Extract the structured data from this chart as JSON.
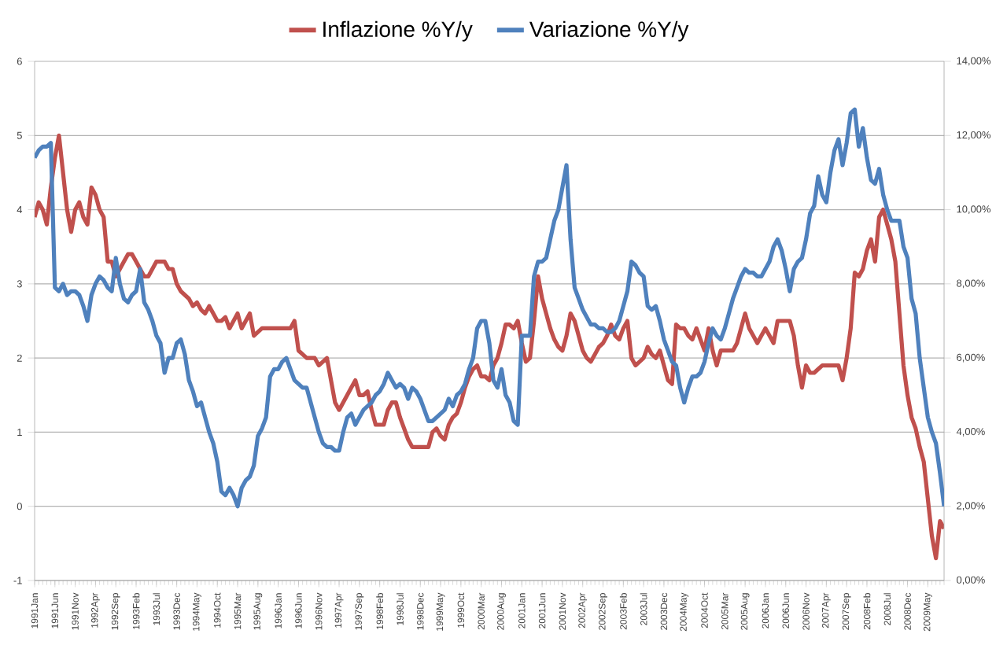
{
  "chart_data": {
    "type": "line",
    "categories": [
      "1991Jan",
      null,
      null,
      null,
      null,
      "1991Jun",
      null,
      null,
      null,
      null,
      "1991Nov",
      null,
      null,
      null,
      null,
      "1992Apr",
      null,
      null,
      null,
      null,
      "1992Sep",
      null,
      null,
      null,
      null,
      "1993Feb",
      null,
      null,
      null,
      null,
      "1993Jul",
      null,
      null,
      null,
      null,
      "1993Dec",
      null,
      null,
      null,
      null,
      "1994May",
      null,
      null,
      null,
      null,
      "1994Oct",
      null,
      null,
      null,
      null,
      "1995Mar",
      null,
      null,
      null,
      null,
      "1995Aug",
      null,
      null,
      null,
      null,
      "1996Jan",
      null,
      null,
      null,
      null,
      "1996Jun",
      null,
      null,
      null,
      null,
      "1996Nov",
      null,
      null,
      null,
      null,
      "1997Apr",
      null,
      null,
      null,
      null,
      "1997Sep",
      null,
      null,
      null,
      null,
      "1998Feb",
      null,
      null,
      null,
      null,
      "1998Jul",
      null,
      null,
      null,
      null,
      "1998Dec",
      null,
      null,
      null,
      null,
      "1999May",
      null,
      null,
      null,
      null,
      "1999Oct",
      null,
      null,
      null,
      null,
      "2000Mar",
      null,
      null,
      null,
      null,
      "2000Aug",
      null,
      null,
      null,
      null,
      "2001Jan",
      null,
      null,
      null,
      null,
      "2001Jun",
      null,
      null,
      null,
      null,
      "2001Nov",
      null,
      null,
      null,
      null,
      "2002Apr",
      null,
      null,
      null,
      null,
      "2002Sep",
      null,
      null,
      null,
      null,
      "2003Feb",
      null,
      null,
      null,
      null,
      "2003Jul",
      null,
      null,
      null,
      null,
      "2003Dec",
      null,
      null,
      null,
      null,
      "2004May",
      null,
      null,
      null,
      null,
      "2004Oct",
      null,
      null,
      null,
      null,
      "2005Mar",
      null,
      null,
      null,
      null,
      "2005Aug",
      null,
      null,
      null,
      null,
      "2006Jan",
      null,
      null,
      null,
      null,
      "2006Jun",
      null,
      null,
      null,
      null,
      "2006Nov",
      null,
      null,
      null,
      null,
      "2007Apr",
      null,
      null,
      null,
      null,
      "2007Sep",
      null,
      null,
      null,
      null,
      "2008Feb",
      null,
      null,
      null,
      null,
      "2008Jul",
      null,
      null,
      null,
      null,
      "2008Dec",
      null,
      null,
      null,
      null,
      "2009May",
      null,
      null,
      null,
      null
    ],
    "series": [
      {
        "name": "Inflazione %Y/y",
        "color": "#c0504d",
        "values": [
          3.9,
          4.1,
          4.0,
          3.8,
          4.3,
          4.7,
          5.0,
          4.5,
          4.0,
          3.7,
          4.0,
          4.1,
          3.9,
          3.8,
          4.3,
          4.2,
          4.0,
          3.9,
          3.3,
          3.3,
          3.1,
          3.2,
          3.3,
          3.4,
          3.4,
          3.3,
          3.2,
          3.1,
          3.1,
          3.2,
          3.3,
          3.3,
          3.3,
          3.2,
          3.2,
          3.0,
          2.9,
          2.85,
          2.8,
          2.7,
          2.75,
          2.65,
          2.6,
          2.7,
          2.6,
          2.5,
          2.5,
          2.55,
          2.4,
          2.5,
          2.6,
          2.4,
          2.5,
          2.6,
          2.3,
          2.35,
          2.4,
          2.4,
          2.4,
          2.4,
          2.4,
          2.4,
          2.4,
          2.4,
          2.5,
          2.1,
          2.05,
          2.0,
          2.0,
          2.0,
          1.9,
          1.95,
          2.0,
          1.7,
          1.4,
          1.3,
          1.4,
          1.5,
          1.6,
          1.7,
          1.5,
          1.5,
          1.55,
          1.3,
          1.1,
          1.1,
          1.1,
          1.3,
          1.4,
          1.4,
          1.2,
          1.05,
          0.9,
          0.8,
          0.8,
          0.8,
          0.8,
          0.8,
          1.0,
          1.05,
          0.95,
          0.9,
          1.1,
          1.2,
          1.25,
          1.4,
          1.6,
          1.75,
          1.85,
          1.9,
          1.75,
          1.75,
          1.7,
          1.9,
          2.0,
          2.2,
          2.45,
          2.45,
          2.4,
          2.5,
          2.2,
          1.95,
          2.0,
          2.5,
          3.1,
          2.8,
          2.6,
          2.4,
          2.25,
          2.15,
          2.1,
          2.3,
          2.6,
          2.5,
          2.3,
          2.1,
          2.0,
          1.95,
          2.05,
          2.15,
          2.2,
          2.3,
          2.45,
          2.3,
          2.25,
          2.4,
          2.5,
          2.0,
          1.9,
          1.95,
          2.0,
          2.15,
          2.05,
          2.0,
          2.1,
          1.9,
          1.7,
          1.65,
          2.45,
          2.4,
          2.4,
          2.3,
          2.25,
          2.4,
          2.25,
          2.1,
          2.4,
          2.1,
          1.9,
          2.1,
          2.1,
          2.1,
          2.1,
          2.2,
          2.4,
          2.6,
          2.4,
          2.3,
          2.2,
          2.3,
          2.4,
          2.3,
          2.2,
          2.5,
          2.5,
          2.5,
          2.5,
          2.3,
          1.9,
          1.6,
          1.9,
          1.8,
          1.8,
          1.85,
          1.9,
          1.9,
          1.9,
          1.9,
          1.9,
          1.7,
          2.0,
          2.4,
          3.15,
          3.1,
          3.2,
          3.45,
          3.6,
          3.3,
          3.9,
          4.0,
          3.8,
          3.6,
          3.3,
          2.6,
          1.9,
          1.5,
          1.2,
          1.05,
          0.8,
          0.6,
          0.1,
          -0.4,
          -0.7,
          -0.2,
          -0.3
        ]
      },
      {
        "name": "Variazione %Y/y",
        "color": "#4f81bd",
        "axis": "y2",
        "values": [
          11.4,
          11.6,
          11.7,
          11.7,
          11.8,
          7.9,
          7.8,
          8.0,
          7.7,
          7.8,
          7.8,
          7.7,
          7.4,
          7.0,
          7.7,
          8.0,
          8.2,
          8.1,
          7.9,
          7.8,
          8.7,
          8.0,
          7.6,
          7.5,
          7.7,
          7.8,
          8.4,
          7.5,
          7.3,
          7.0,
          6.6,
          6.4,
          5.6,
          6.0,
          6.0,
          6.4,
          6.5,
          6.1,
          5.4,
          5.1,
          4.7,
          4.8,
          4.4,
          4.0,
          3.7,
          3.2,
          2.4,
          2.3,
          2.5,
          2.3,
          2.0,
          2.5,
          2.7,
          2.8,
          3.1,
          3.9,
          4.1,
          4.4,
          5.5,
          5.7,
          5.7,
          5.9,
          6.0,
          5.7,
          5.4,
          5.3,
          5.2,
          5.2,
          4.8,
          4.4,
          4.0,
          3.7,
          3.6,
          3.6,
          3.5,
          3.5,
          4.0,
          4.4,
          4.5,
          4.2,
          4.4,
          4.6,
          4.7,
          4.8,
          5.0,
          5.1,
          5.3,
          5.6,
          5.4,
          5.2,
          5.3,
          5.2,
          4.9,
          5.2,
          5.1,
          4.9,
          4.6,
          4.3,
          4.3,
          4.4,
          4.5,
          4.6,
          4.9,
          4.7,
          5.0,
          5.1,
          5.3,
          5.7,
          6.0,
          6.8,
          7.0,
          7.0,
          6.4,
          5.4,
          5.2,
          5.7,
          5.0,
          4.8,
          4.3,
          4.2,
          6.6,
          6.6,
          6.6,
          8.2,
          8.6,
          8.6,
          8.7,
          9.2,
          9.7,
          10.0,
          10.6,
          11.2,
          9.2,
          7.9,
          7.6,
          7.3,
          7.1,
          6.9,
          6.9,
          6.8,
          6.8,
          6.7,
          6.7,
          6.8,
          7.0,
          7.4,
          7.8,
          8.6,
          8.5,
          8.3,
          8.2,
          7.4,
          7.3,
          7.4,
          7.0,
          6.5,
          6.2,
          5.9,
          5.8,
          5.2,
          4.8,
          5.2,
          5.5,
          5.5,
          5.6,
          5.9,
          6.4,
          6.8,
          6.6,
          6.5,
          6.8,
          7.2,
          7.6,
          7.9,
          8.2,
          8.4,
          8.3,
          8.3,
          8.2,
          8.2,
          8.4,
          8.6,
          9.0,
          9.2,
          8.9,
          8.4,
          7.8,
          8.4,
          8.6,
          8.7,
          9.2,
          9.9,
          10.1,
          10.9,
          10.4,
          10.2,
          11.0,
          11.6,
          11.9,
          11.2,
          11.8,
          12.6,
          12.7,
          11.7,
          12.2,
          11.4,
          10.8,
          10.7,
          11.1,
          10.4,
          10.0,
          9.7,
          9.7,
          9.7,
          9.0,
          8.7,
          7.6,
          7.2,
          6.0,
          5.2,
          4.4,
          4.0,
          3.7,
          2.9,
          2.0
        ]
      }
    ],
    "ylim": [
      -1,
      6
    ],
    "yticks": [
      -1,
      0,
      1,
      2,
      3,
      4,
      5,
      6
    ],
    "y2lim": [
      0,
      14
    ],
    "y2ticks": [
      {
        "value": 0,
        "label": "0,00%"
      },
      {
        "value": 2,
        "label": "2,00%"
      },
      {
        "value": 4,
        "label": "4,00%"
      },
      {
        "value": 6,
        "label": "6,00%"
      },
      {
        "value": 8,
        "label": "8,00%"
      },
      {
        "value": 10,
        "label": "10,00%"
      },
      {
        "value": 12,
        "label": "12,00%"
      },
      {
        "value": 14,
        "label": "14,00%"
      }
    ],
    "grid": "y",
    "legend": "top"
  }
}
